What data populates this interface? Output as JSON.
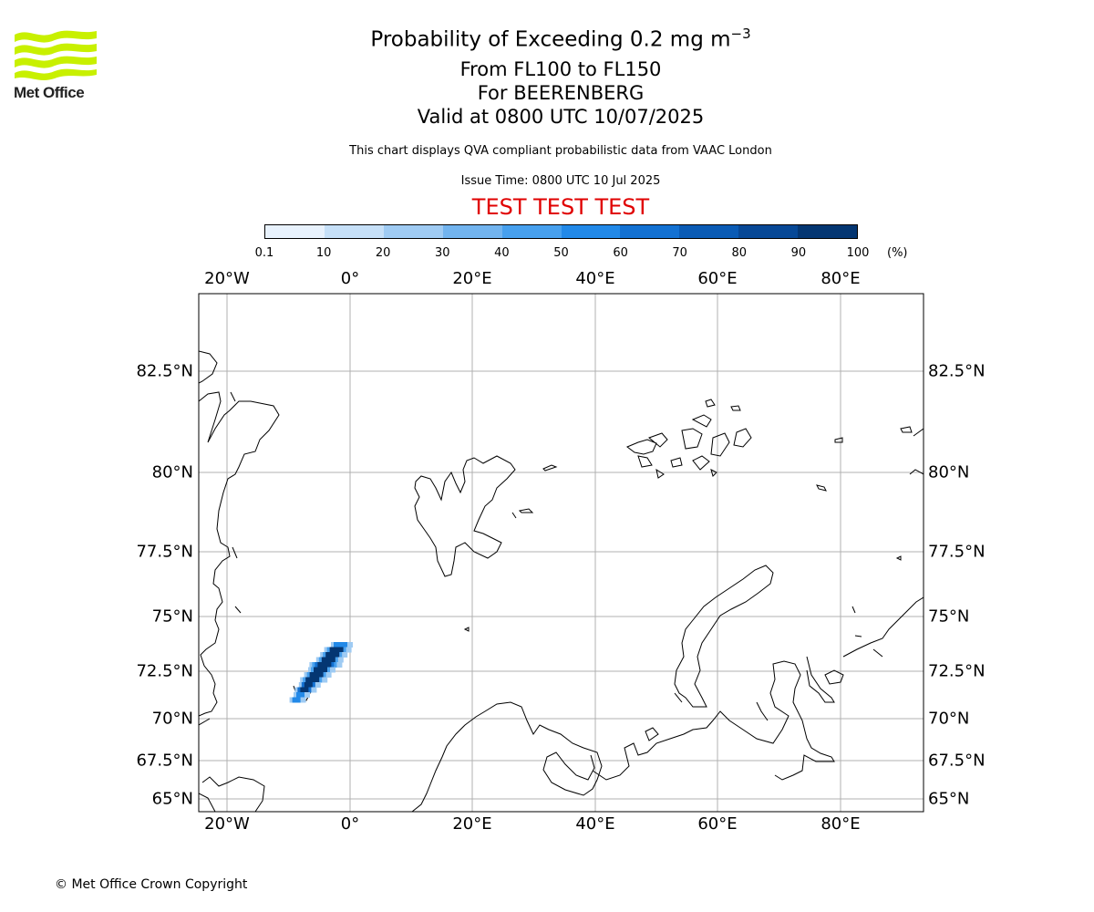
{
  "header": {
    "logo_text": "Met Office",
    "title_prefix": "Probability of Exceeding 0.2 mg m",
    "title_exponent": "−3",
    "flight_levels": "From FL100 to FL150",
    "volcano": "For BEERENBERG",
    "valid_time": "Valid at 0800 UTC 10/07/2025",
    "data_note": "This chart displays QVA compliant probabilistic data from VAAC London",
    "issue_time": "Issue Time: 0800 UTC 10 Jul 2025",
    "test_banner": "TEST TEST TEST",
    "test_color": "#e00000"
  },
  "colorbar": {
    "labels": [
      "0.1",
      "10",
      "20",
      "30",
      "40",
      "50",
      "60",
      "70",
      "80",
      "90",
      "100"
    ],
    "unit": "(%)",
    "colors": [
      "#e8f2fd",
      "#c6e0f8",
      "#9fcbf3",
      "#72b4ef",
      "#47a0ee",
      "#2289e8",
      "#1371d2",
      "#0a5bb5",
      "#074896",
      "#043672"
    ]
  },
  "map": {
    "projection": "Lambert conformal",
    "lat_labels": [
      "82.5°N",
      "80°N",
      "77.5°N",
      "75°N",
      "72.5°N",
      "70°N",
      "67.5°N",
      "65°N"
    ],
    "lon_labels": [
      "20°W",
      "0°",
      "20°E",
      "40°E",
      "60°E",
      "80°E"
    ],
    "plume": {
      "max_probability_percent": 100,
      "source": "BEERENBERG"
    },
    "coastline_color": "#000000",
    "grid_color": "#b0b0b0"
  },
  "footer": {
    "copyright": "© Met Office Crown Copyright"
  }
}
